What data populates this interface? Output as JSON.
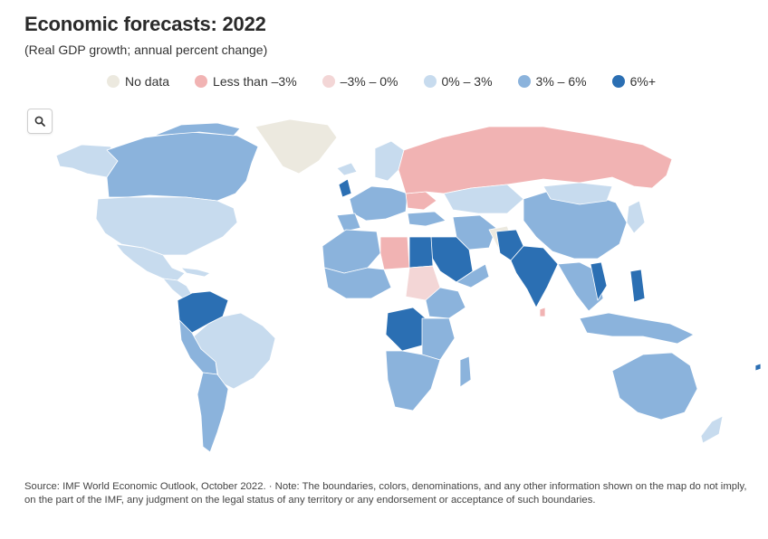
{
  "title": "Economic forecasts: 2022",
  "subtitle": "(Real GDP growth; annual percent change)",
  "legend": [
    {
      "label": "No data",
      "color": "#ece9df"
    },
    {
      "label": "Less than –3%",
      "color": "#f1b3b3"
    },
    {
      "label": "–3% – 0%",
      "color": "#f3d6d6"
    },
    {
      "label": "0% – 3%",
      "color": "#c7dbee"
    },
    {
      "label": "3% – 6%",
      "color": "#8bb3dc"
    },
    {
      "label": "6%+",
      "color": "#2b6fb3"
    }
  ],
  "zoom": {
    "icon": "search-icon"
  },
  "note": "Source: IMF World Economic Outlook, October 2022. · Note: The boundaries, colors, denominations, and any other information shown on the map do not imply, on the part of the IMF, any judgment on the legal status of any territory or any endorsement or acceptance of such boundaries."
}
